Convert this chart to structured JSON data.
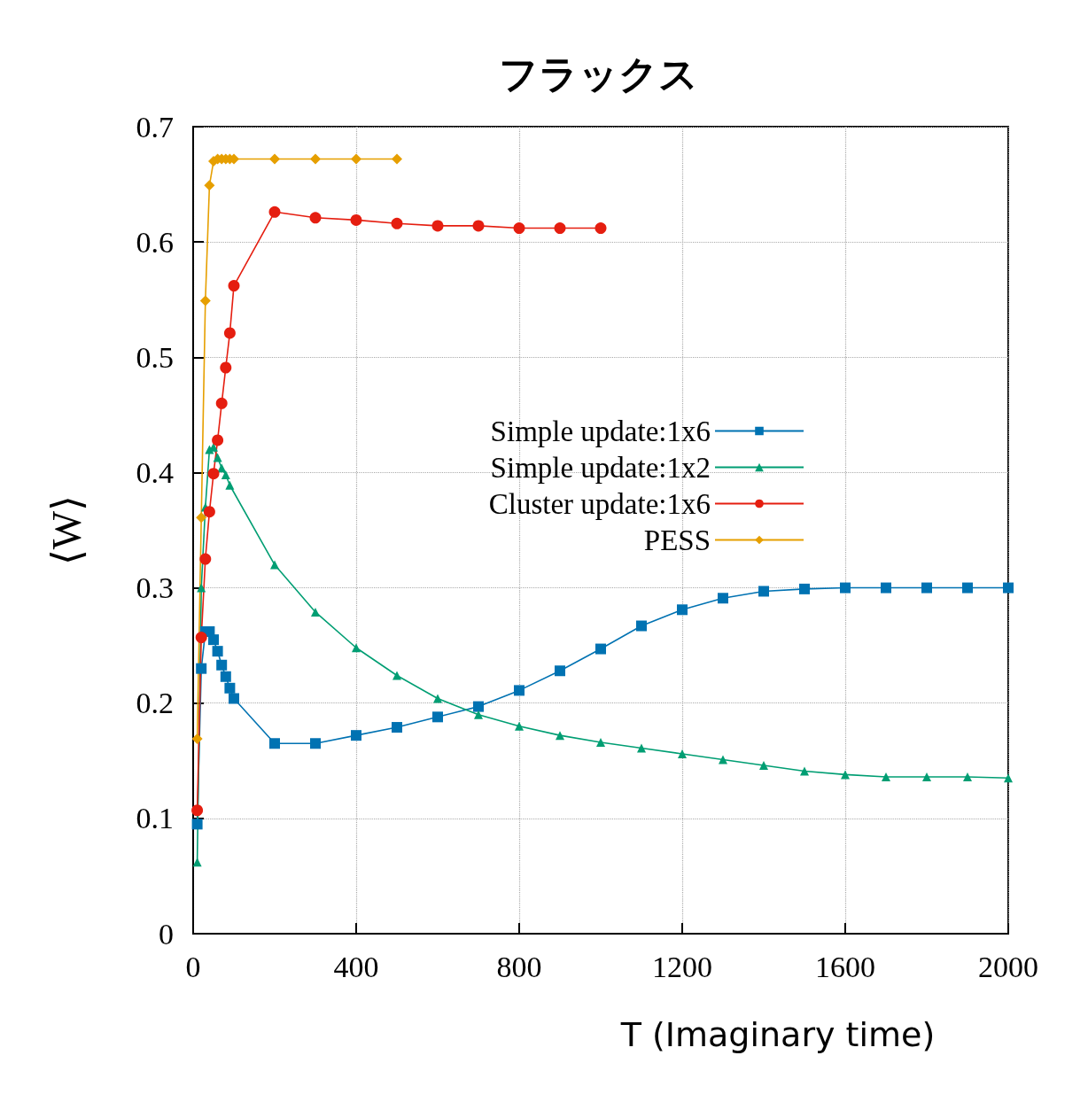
{
  "chart_data": {
    "type": "line",
    "title": "フラックス",
    "xlabel": "T (Imaginary time)",
    "ylabel": "⟨W⟩",
    "xlim": [
      0,
      2000
    ],
    "xticks": [
      0,
      400,
      800,
      1200,
      1600,
      2000
    ],
    "ylim": [
      0,
      0.7
    ],
    "yticks": [
      0,
      0.1,
      0.2,
      0.3,
      0.4,
      0.5,
      0.6,
      0.7
    ],
    "grid": true,
    "legend": "right",
    "line_style": "solid",
    "series": [
      {
        "name": "Simple update:1x6",
        "color": "#0072b2",
        "marker": "square",
        "x": [
          10,
          20,
          30,
          40,
          50,
          60,
          70,
          80,
          90,
          100,
          200,
          300,
          400,
          500,
          600,
          700,
          800,
          900,
          1000,
          1100,
          1200,
          1300,
          1400,
          1500,
          1600,
          1700,
          1800,
          1900,
          2000
        ],
        "values": [
          0.095,
          0.23,
          0.262,
          0.262,
          0.255,
          0.245,
          0.233,
          0.223,
          0.213,
          0.204,
          0.165,
          0.165,
          0.172,
          0.179,
          0.188,
          0.197,
          0.211,
          0.228,
          0.247,
          0.267,
          0.281,
          0.291,
          0.297,
          0.299,
          0.3,
          0.3,
          0.3,
          0.3,
          0.3
        ]
      },
      {
        "name": "Simple update:1x2",
        "color": "#009e73",
        "marker": "triangle",
        "x": [
          10,
          20,
          30,
          40,
          50,
          60,
          70,
          80,
          90,
          200,
          300,
          400,
          500,
          600,
          700,
          800,
          900,
          1000,
          1100,
          1200,
          1300,
          1400,
          1500,
          1600,
          1700,
          1800,
          1900,
          2000
        ],
        "values": [
          0.062,
          0.3,
          0.37,
          0.42,
          0.422,
          0.413,
          0.404,
          0.398,
          0.389,
          0.32,
          0.279,
          0.248,
          0.224,
          0.204,
          0.19,
          0.18,
          0.172,
          0.166,
          0.161,
          0.156,
          0.151,
          0.146,
          0.141,
          0.138,
          0.136,
          0.136,
          0.136,
          0.135
        ]
      },
      {
        "name": "Cluster update:1x6",
        "color": "#e51e10",
        "marker": "circle",
        "x": [
          10,
          20,
          30,
          40,
          50,
          60,
          70,
          80,
          90,
          100,
          200,
          300,
          400,
          500,
          600,
          700,
          800,
          900,
          1000
        ],
        "values": [
          0.107,
          0.257,
          0.325,
          0.366,
          0.399,
          0.428,
          0.46,
          0.491,
          0.521,
          0.562,
          0.626,
          0.621,
          0.619,
          0.616,
          0.614,
          0.614,
          0.612,
          0.612,
          0.612
        ]
      },
      {
        "name": "PESS",
        "color": "#e69f00",
        "marker": "diamond",
        "x": [
          10,
          20,
          30,
          40,
          50,
          60,
          70,
          80,
          90,
          100,
          200,
          300,
          400,
          500
        ],
        "values": [
          0.169,
          0.361,
          0.549,
          0.649,
          0.67,
          0.672,
          0.672,
          0.672,
          0.672,
          0.672,
          0.672,
          0.672,
          0.672,
          0.672
        ]
      }
    ]
  }
}
